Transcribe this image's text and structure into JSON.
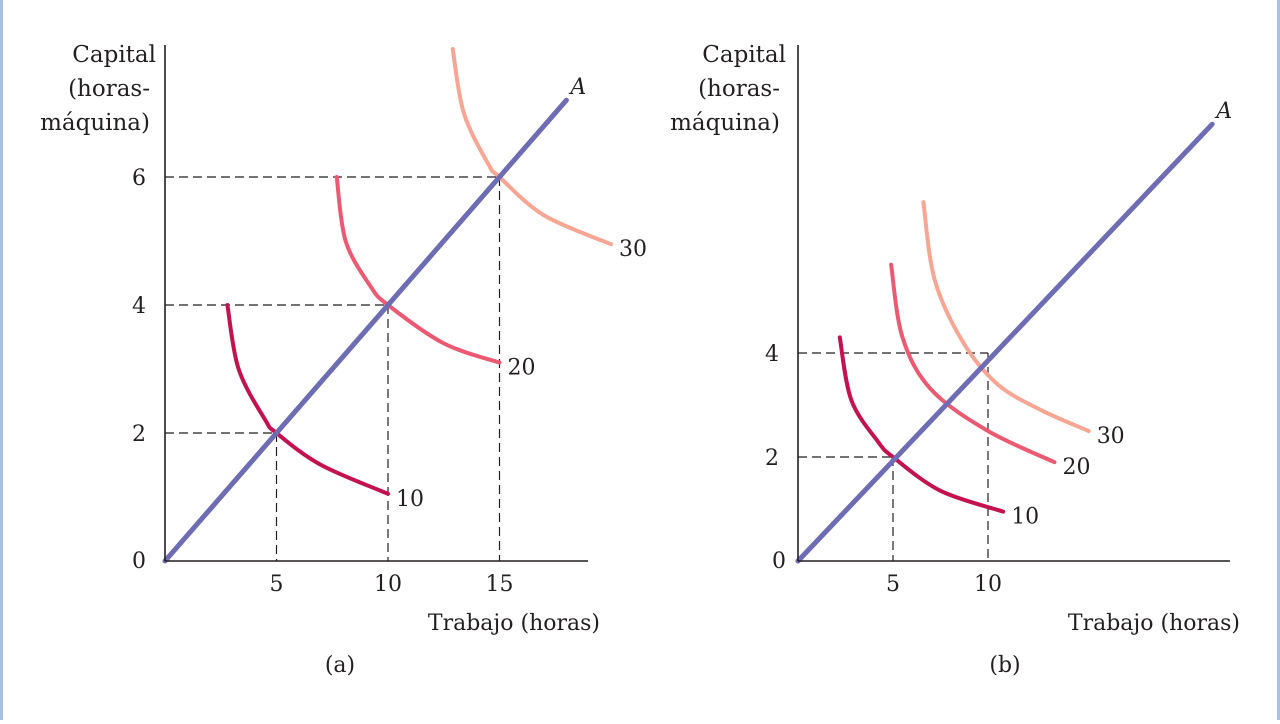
{
  "chart_data": [
    {
      "type": "line",
      "panel_label": "(a)",
      "ylabel_lines": [
        "Capital",
        "(horas-",
        "máquina)"
      ],
      "xlabel": "Trabajo (horas)",
      "x_ticks": [
        "5",
        "10",
        "15"
      ],
      "y_ticks": [
        "2",
        "4",
        "6"
      ],
      "origin_label": "0",
      "xlim": [
        0,
        19
      ],
      "ylim": [
        0,
        8
      ],
      "ray": {
        "label": "A",
        "from": [
          0,
          0
        ],
        "to": [
          18,
          7.2
        ]
      },
      "guides": [
        [
          5,
          2
        ],
        [
          10,
          4
        ],
        [
          15,
          6
        ]
      ],
      "isoquants": [
        {
          "label": "10",
          "color": "#c3124f",
          "points": [
            [
              2.8,
              4.0
            ],
            [
              3.3,
              3.0
            ],
            [
              4.5,
              2.2
            ],
            [
              5,
              2
            ],
            [
              7,
              1.5
            ],
            [
              10,
              1.05
            ]
          ]
        },
        {
          "label": "20",
          "color": "#eb5a72",
          "points": [
            [
              7.7,
              6.0
            ],
            [
              8.1,
              5.0
            ],
            [
              9.2,
              4.3
            ],
            [
              10,
              4
            ],
            [
              12.5,
              3.4
            ],
            [
              15,
              3.1
            ]
          ]
        },
        {
          "label": "30",
          "color": "#f6a693",
          "points": [
            [
              12.9,
              8.0
            ],
            [
              13.4,
              7.0
            ],
            [
              14.5,
              6.2
            ],
            [
              15,
              6
            ],
            [
              17,
              5.4
            ],
            [
              20,
              4.95
            ]
          ]
        }
      ]
    },
    {
      "type": "line",
      "panel_label": "(b)",
      "ylabel_lines": [
        "Capital",
        "(horas-",
        "máquina)"
      ],
      "xlabel": "Trabajo (horas)",
      "x_ticks": [
        "5",
        "10"
      ],
      "y_ticks": [
        "2",
        "4"
      ],
      "origin_label": "0",
      "xlim": [
        0,
        23
      ],
      "ylim": [
        0,
        9.5
      ],
      "ray": {
        "label": "A",
        "from": [
          0,
          0
        ],
        "to": [
          21.8,
          8.4
        ]
      },
      "guides": [
        [
          5,
          2
        ],
        [
          10,
          4
        ]
      ],
      "isoquants": [
        {
          "label": "10",
          "color": "#c3124f",
          "points": [
            [
              2.2,
              4.3
            ],
            [
              2.8,
              3.1
            ],
            [
              4.2,
              2.3
            ],
            [
              5,
              2
            ],
            [
              7.5,
              1.35
            ],
            [
              10.8,
              0.95
            ]
          ]
        },
        {
          "label": "20",
          "color": "#eb5a72",
          "points": [
            [
              4.9,
              5.7
            ],
            [
              5.5,
              4.3
            ],
            [
              7.0,
              3.3
            ],
            [
              10,
              2.5
            ],
            [
              13.5,
              1.9
            ]
          ]
        },
        {
          "label": "30",
          "color": "#f6a693",
          "points": [
            [
              6.6,
              6.9
            ],
            [
              7.2,
              5.4
            ],
            [
              8.7,
              4.2
            ],
            [
              10.5,
              3.4
            ],
            [
              12.8,
              2.9
            ],
            [
              15.3,
              2.5
            ]
          ]
        }
      ]
    }
  ],
  "style": {
    "ray_color": "#6e6cb2",
    "axis_color": "#231f20",
    "frame_color": "#a9bfe6"
  }
}
